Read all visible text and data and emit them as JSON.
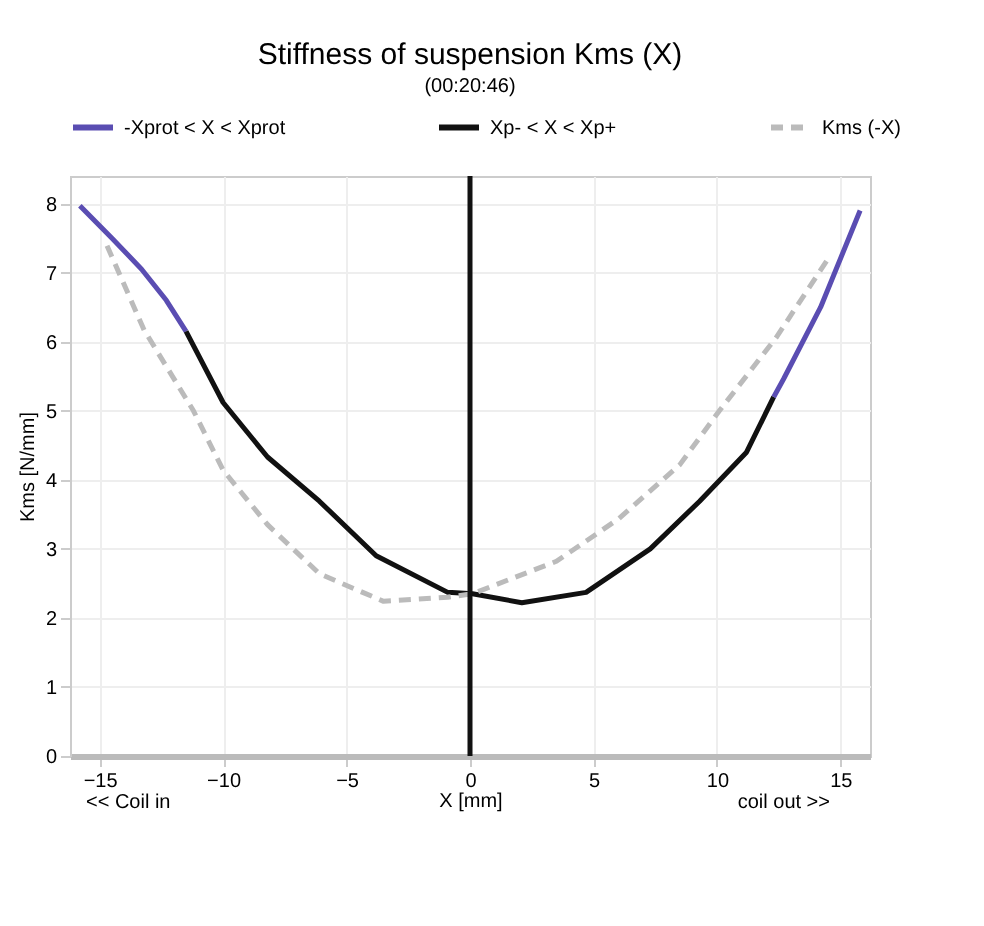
{
  "chart_data": {
    "type": "line",
    "title": "Stiffness of suspension Kms (X)",
    "subtitle": "(00:20:46)",
    "xlabel": "X [mm]",
    "ylabel": "Kms [N/mm]",
    "xlim": [
      -16.2,
      16.2
    ],
    "ylim": [
      0,
      8.4
    ],
    "xticks": [
      -15,
      -10,
      -5,
      0,
      5,
      10,
      15
    ],
    "yticks": [
      0,
      1,
      2,
      3,
      4,
      5,
      6,
      7,
      8
    ],
    "grid": true,
    "legend": "top",
    "marker": "none",
    "series": [
      {
        "name": "-Xprot < X < Xprot",
        "color": "#5a4db2",
        "x": [
          -15.8,
          -14.5,
          -13.3,
          -12.3,
          -11.5
        ],
        "values": [
          7.97,
          7.5,
          7.05,
          6.6,
          6.15
        ]
      },
      {
        "name": "Xp- < X < Xp+",
        "color": "#111111",
        "x": [
          -11.5,
          -10.0,
          -8.2,
          -6.1,
          -3.8,
          -0.9,
          0.1,
          2.1,
          4.7,
          7.3,
          9.3,
          11.2,
          12.3
        ],
        "values": [
          6.15,
          5.12,
          4.33,
          3.69,
          2.9,
          2.37,
          2.35,
          2.22,
          2.37,
          3.0,
          3.69,
          4.4,
          5.2
        ]
      },
      {
        "color": "#5a4db2",
        "x": [
          12.3,
          12.7,
          14.2,
          15.8
        ],
        "values": [
          5.2,
          5.46,
          6.5,
          7.9
        ]
      },
      {
        "name": "Kms (-X)",
        "color": "#bbbbbb",
        "line_style": "dashed",
        "x": [
          -14.7,
          -13.2,
          -11.2,
          -10.0,
          -8.2,
          -6.1,
          -3.5,
          -0.9,
          0.1,
          3.5,
          6.0,
          8.5,
          10.1,
          12.4,
          14.5
        ],
        "values": [
          7.39,
          6.17,
          5.0,
          4.14,
          3.35,
          2.64,
          2.24,
          2.3,
          2.35,
          2.82,
          3.43,
          4.22,
          5.0,
          6.06,
          7.2
        ]
      }
    ],
    "ref_lines": [
      {
        "axis": "x",
        "value": 0,
        "color": "#111111"
      }
    ],
    "annotations": [
      "<< Coil in",
      "coil out >>"
    ]
  }
}
